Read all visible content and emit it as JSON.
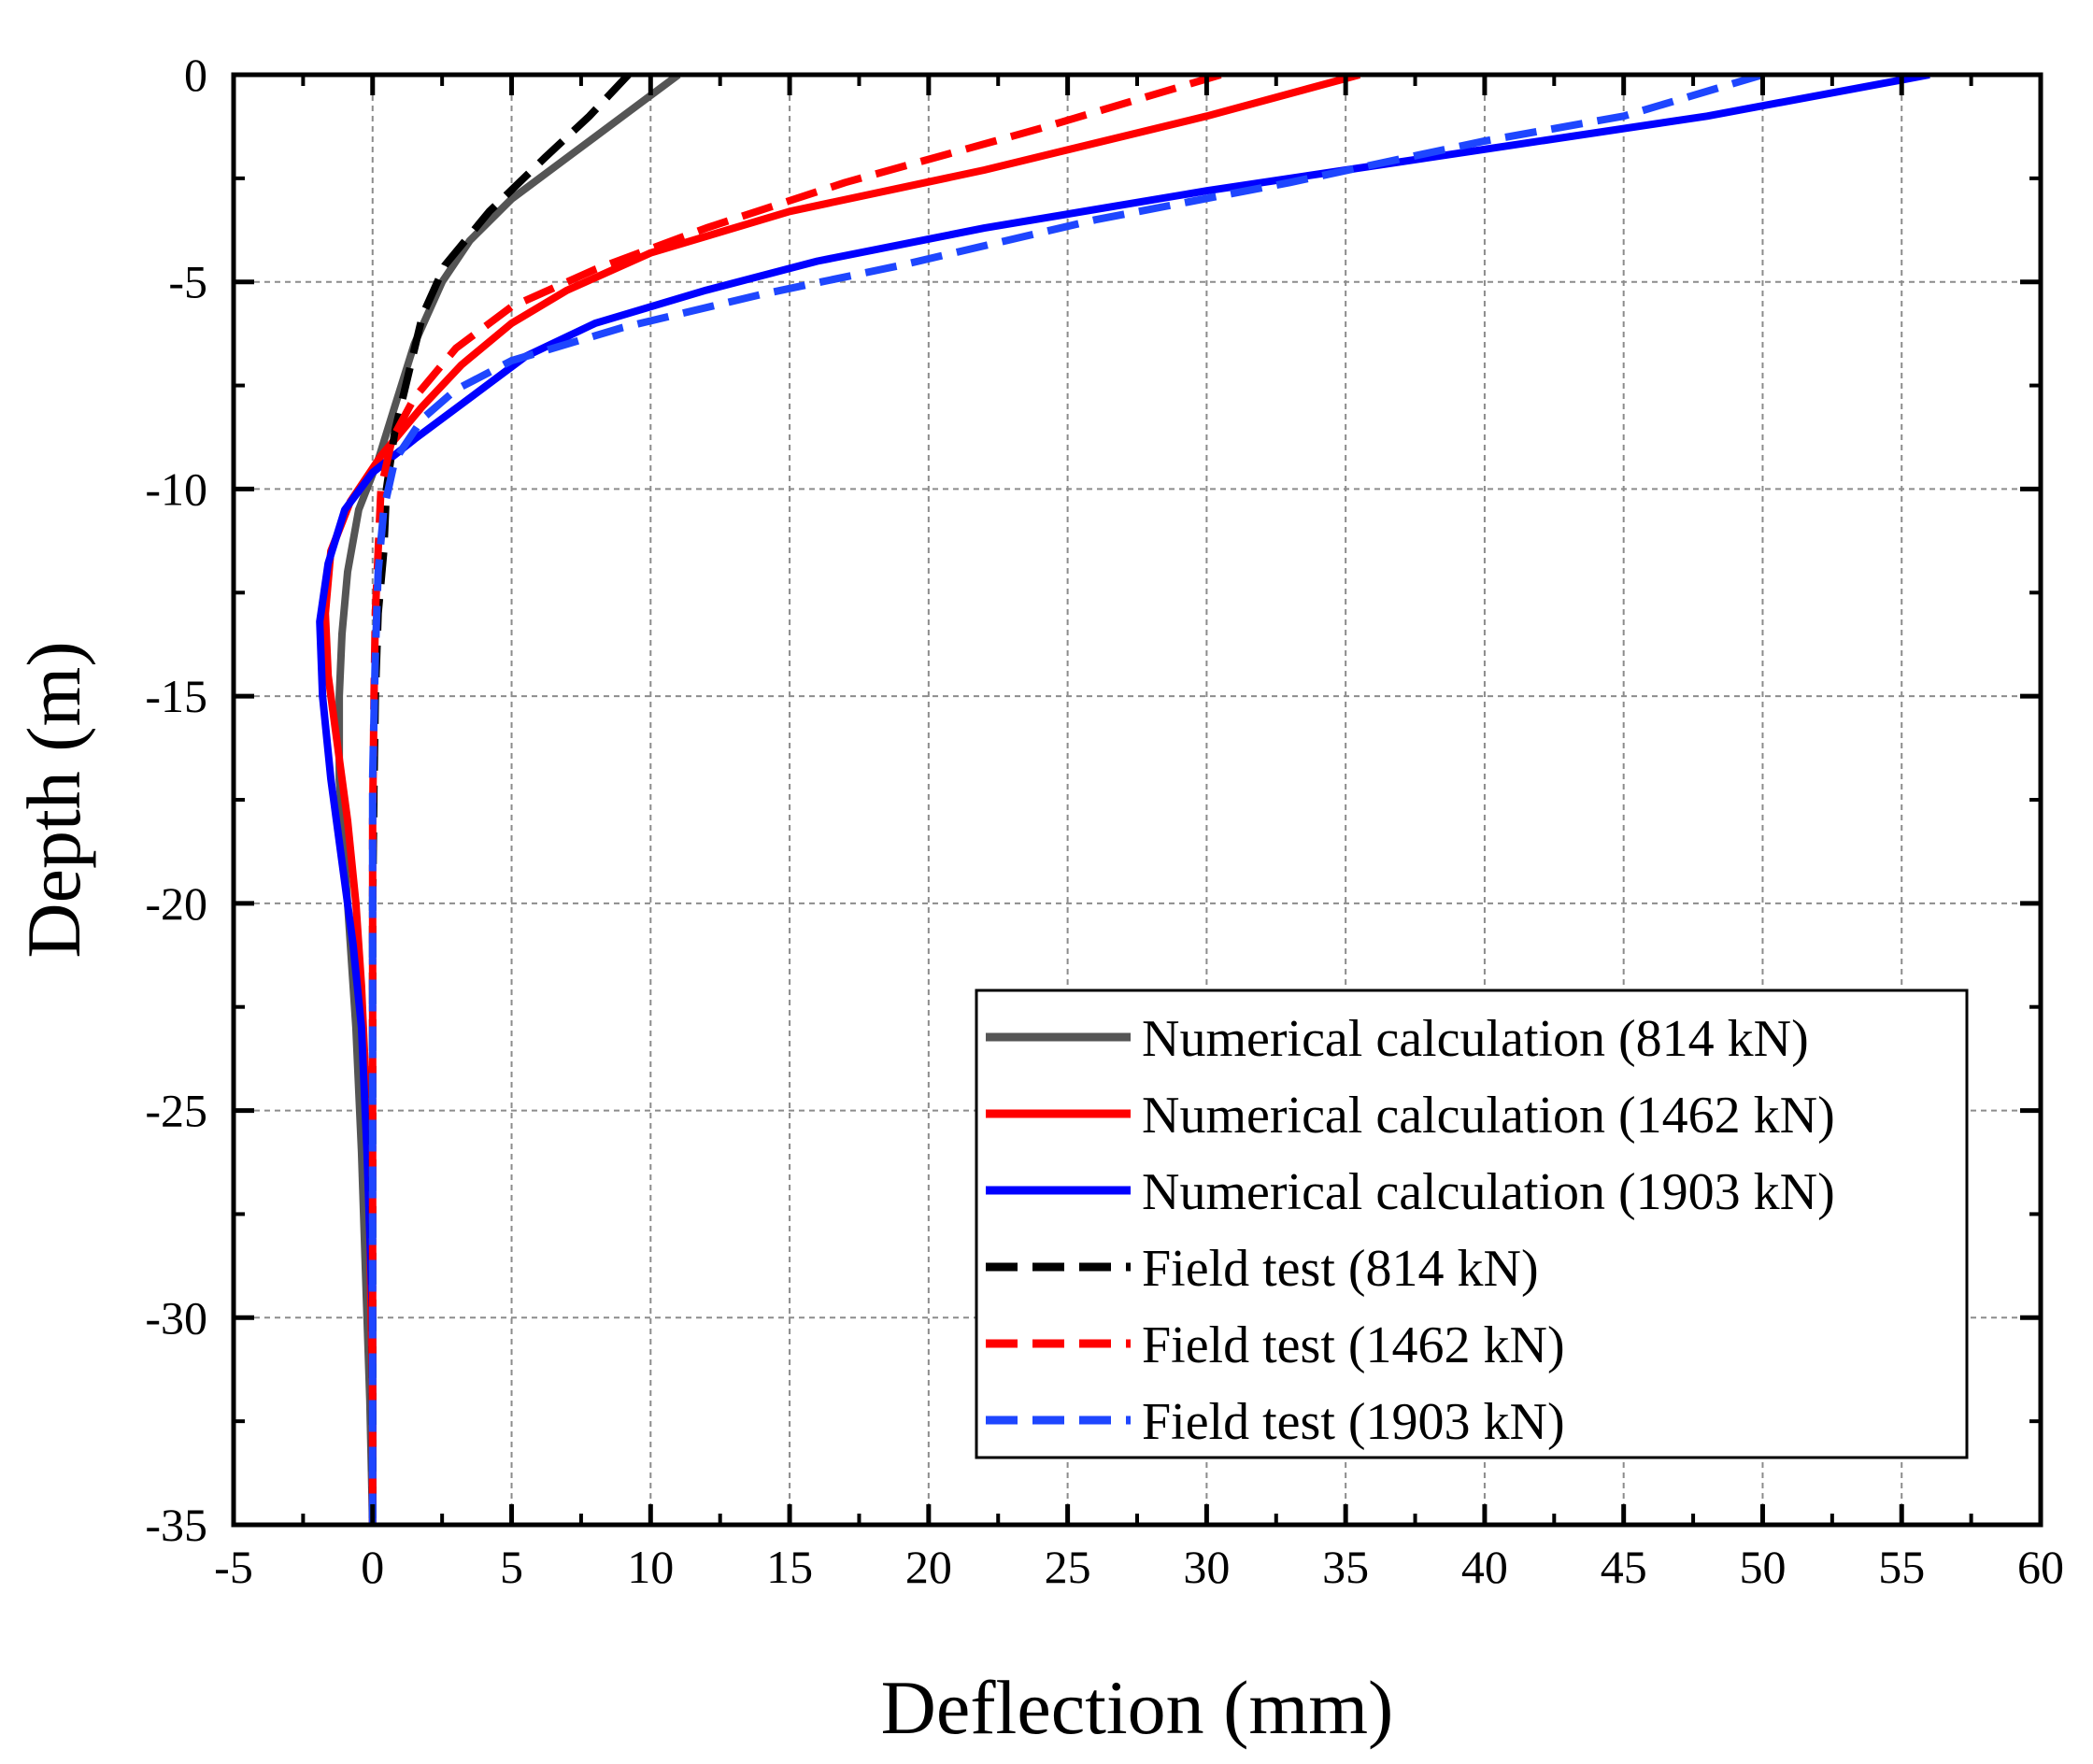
{
  "chart_data": {
    "type": "line",
    "title": "",
    "xlabel": "Deflection (mm)",
    "ylabel": "Depth (m)",
    "xlim": [
      -5,
      60
    ],
    "ylim": [
      -35,
      0
    ],
    "x_ticks": [
      -5,
      0,
      5,
      10,
      15,
      20,
      25,
      30,
      35,
      40,
      45,
      50,
      55,
      60
    ],
    "y_ticks": [
      0,
      -5,
      -10,
      -15,
      -20,
      -25,
      -30,
      -35
    ],
    "grid": true,
    "legend_position": "lower-right",
    "series": [
      {
        "name": "Numerical calculation (814 kN)",
        "color": "#555555",
        "style": "solid",
        "points": [
          [
            11,
            0
          ],
          [
            9,
            -1
          ],
          [
            7,
            -2
          ],
          [
            5,
            -3
          ],
          [
            3.5,
            -4
          ],
          [
            2.5,
            -5
          ],
          [
            1.5,
            -6.5
          ],
          [
            0.8,
            -8
          ],
          [
            0.2,
            -9.3
          ],
          [
            -0.5,
            -10.5
          ],
          [
            -0.9,
            -12
          ],
          [
            -1.1,
            -13.5
          ],
          [
            -1.2,
            -15
          ],
          [
            -1.2,
            -17
          ],
          [
            -1.0,
            -19
          ],
          [
            -0.8,
            -21
          ],
          [
            -0.6,
            -23
          ],
          [
            -0.4,
            -26
          ],
          [
            -0.25,
            -29
          ],
          [
            -0.1,
            -32
          ],
          [
            0,
            -35
          ]
        ]
      },
      {
        "name": "Numerical calculation (1462 kN)",
        "color": "#ff0000",
        "style": "solid",
        "points": [
          [
            35.5,
            0
          ],
          [
            30,
            -1
          ],
          [
            22,
            -2.3
          ],
          [
            15,
            -3.3
          ],
          [
            10,
            -4.3
          ],
          [
            7,
            -5.2
          ],
          [
            5,
            -6
          ],
          [
            3.2,
            -7
          ],
          [
            1.8,
            -8
          ],
          [
            0.3,
            -9.2
          ],
          [
            -0.8,
            -10.3
          ],
          [
            -1.5,
            -11.5
          ],
          [
            -1.7,
            -13
          ],
          [
            -1.6,
            -14.5
          ],
          [
            -1.3,
            -16
          ],
          [
            -0.9,
            -18
          ],
          [
            -0.6,
            -20
          ],
          [
            -0.4,
            -22
          ],
          [
            -0.2,
            -25
          ],
          [
            -0.1,
            -28
          ],
          [
            0,
            -32
          ],
          [
            0,
            -35
          ]
        ]
      },
      {
        "name": "Numerical calculation (1903 kN)",
        "color": "#0000ff",
        "style": "solid",
        "points": [
          [
            56,
            0
          ],
          [
            48,
            -1
          ],
          [
            40,
            -1.8
          ],
          [
            30,
            -2.8
          ],
          [
            22,
            -3.7
          ],
          [
            16,
            -4.5
          ],
          [
            12,
            -5.2
          ],
          [
            8,
            -6
          ],
          [
            5.5,
            -6.8
          ],
          [
            3.5,
            -7.8
          ],
          [
            1.5,
            -8.8
          ],
          [
            0,
            -9.6
          ],
          [
            -1,
            -10.5
          ],
          [
            -1.6,
            -11.8
          ],
          [
            -1.9,
            -13.2
          ],
          [
            -1.8,
            -15
          ],
          [
            -1.5,
            -17
          ],
          [
            -1.1,
            -19
          ],
          [
            -0.7,
            -21
          ],
          [
            -0.4,
            -23
          ],
          [
            -0.2,
            -26
          ],
          [
            0,
            -30
          ],
          [
            0,
            -35
          ]
        ]
      },
      {
        "name": "Field test (814 kN)",
        "color": "#000000",
        "style": "dashed",
        "points": [
          [
            9.2,
            0
          ],
          [
            7.8,
            -1
          ],
          [
            6.2,
            -2
          ],
          [
            4.2,
            -3.3
          ],
          [
            2.6,
            -4.6
          ],
          [
            1.8,
            -5.8
          ],
          [
            1.3,
            -7.2
          ],
          [
            0.8,
            -8.6
          ],
          [
            0.5,
            -10
          ],
          [
            0.4,
            -11.5
          ],
          [
            0.2,
            -13
          ],
          [
            0.1,
            -15
          ],
          [
            0.05,
            -17
          ],
          [
            0,
            -20
          ],
          [
            0,
            -35
          ]
        ]
      },
      {
        "name": "Field test (1462 kN)",
        "color": "#ff0000",
        "style": "dashed",
        "points": [
          [
            30.5,
            0
          ],
          [
            24,
            -1.3
          ],
          [
            17,
            -2.6
          ],
          [
            12,
            -3.7
          ],
          [
            8,
            -4.7
          ],
          [
            5,
            -5.6
          ],
          [
            3,
            -6.6
          ],
          [
            1.5,
            -7.8
          ],
          [
            0.7,
            -8.8
          ],
          [
            0.3,
            -10
          ],
          [
            0.2,
            -11.5
          ],
          [
            0.1,
            -13
          ],
          [
            0.05,
            -15
          ],
          [
            0,
            -18
          ],
          [
            0,
            -35
          ]
        ]
      },
      {
        "name": "Field test (1903 kN)",
        "color": "#1e46ff",
        "style": "dashed",
        "points": [
          [
            50,
            0
          ],
          [
            45,
            -1
          ],
          [
            40,
            -1.6
          ],
          [
            33,
            -2.6
          ],
          [
            26,
            -3.5
          ],
          [
            19,
            -4.6
          ],
          [
            14,
            -5.3
          ],
          [
            9,
            -6.1
          ],
          [
            5,
            -6.9
          ],
          [
            3,
            -7.6
          ],
          [
            1.8,
            -8.3
          ],
          [
            0.8,
            -9.3
          ],
          [
            0.4,
            -10.5
          ],
          [
            0.2,
            -12
          ],
          [
            0.1,
            -14
          ],
          [
            0,
            -17
          ],
          [
            0,
            -35
          ]
        ]
      }
    ]
  }
}
